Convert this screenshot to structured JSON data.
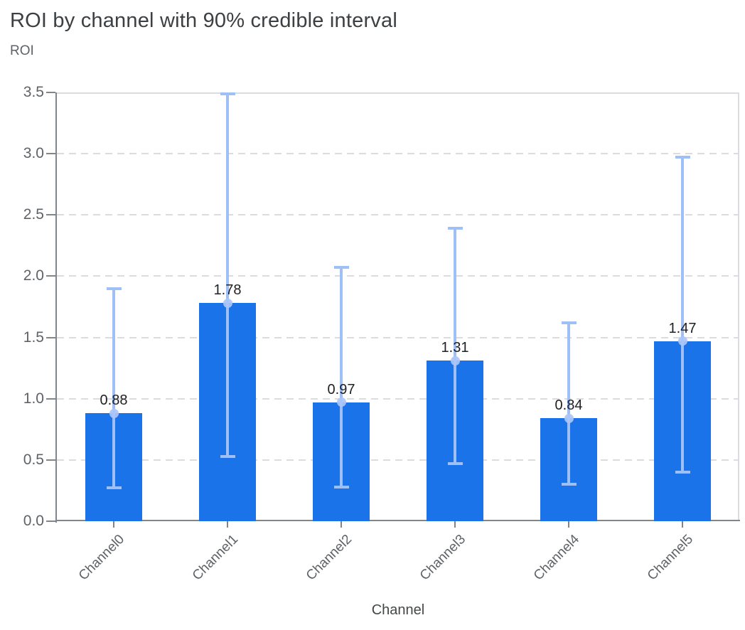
{
  "header": {
    "title": "ROI by channel with 90% credible interval",
    "y_axis_title": "ROI",
    "x_axis_title": "Channel"
  },
  "colors": {
    "bar": "#1a73e8",
    "error_bar": "#9fc0f7",
    "error_dot": "#aac6f8",
    "gridline": "#dadce0",
    "axis_line": "#80868b",
    "title_text": "#3c4043",
    "tick_text": "#5f6368",
    "value_text": "#202124"
  },
  "chart_data": {
    "type": "bar",
    "title": "ROI by channel with 90% credible interval",
    "xlabel": "Channel",
    "ylabel": "ROI",
    "categories": [
      "Channel0",
      "Channel1",
      "Channel2",
      "Channel3",
      "Channel4",
      "Channel5"
    ],
    "values": [
      0.88,
      1.78,
      0.97,
      1.31,
      0.84,
      1.47
    ],
    "bar_labels": [
      "0.88",
      "1.78",
      "0.97",
      "1.31",
      "0.84",
      "1.47"
    ],
    "error_low": [
      0.27,
      0.53,
      0.28,
      0.47,
      0.3,
      0.4
    ],
    "error_high": [
      1.9,
      3.49,
      2.07,
      2.39,
      1.62,
      2.97
    ],
    "ylim": [
      0,
      3.5
    ],
    "yticks": [
      0.0,
      0.5,
      1.0,
      1.5,
      2.0,
      2.5,
      3.0,
      3.5
    ],
    "ytick_labels": [
      "0.0",
      "0.5",
      "1.0",
      "1.5",
      "2.0",
      "2.5",
      "3.0",
      "3.5"
    ],
    "grid": "horizontal-dashed",
    "legend": "none",
    "error_bar_meaning": "90% credible interval"
  }
}
